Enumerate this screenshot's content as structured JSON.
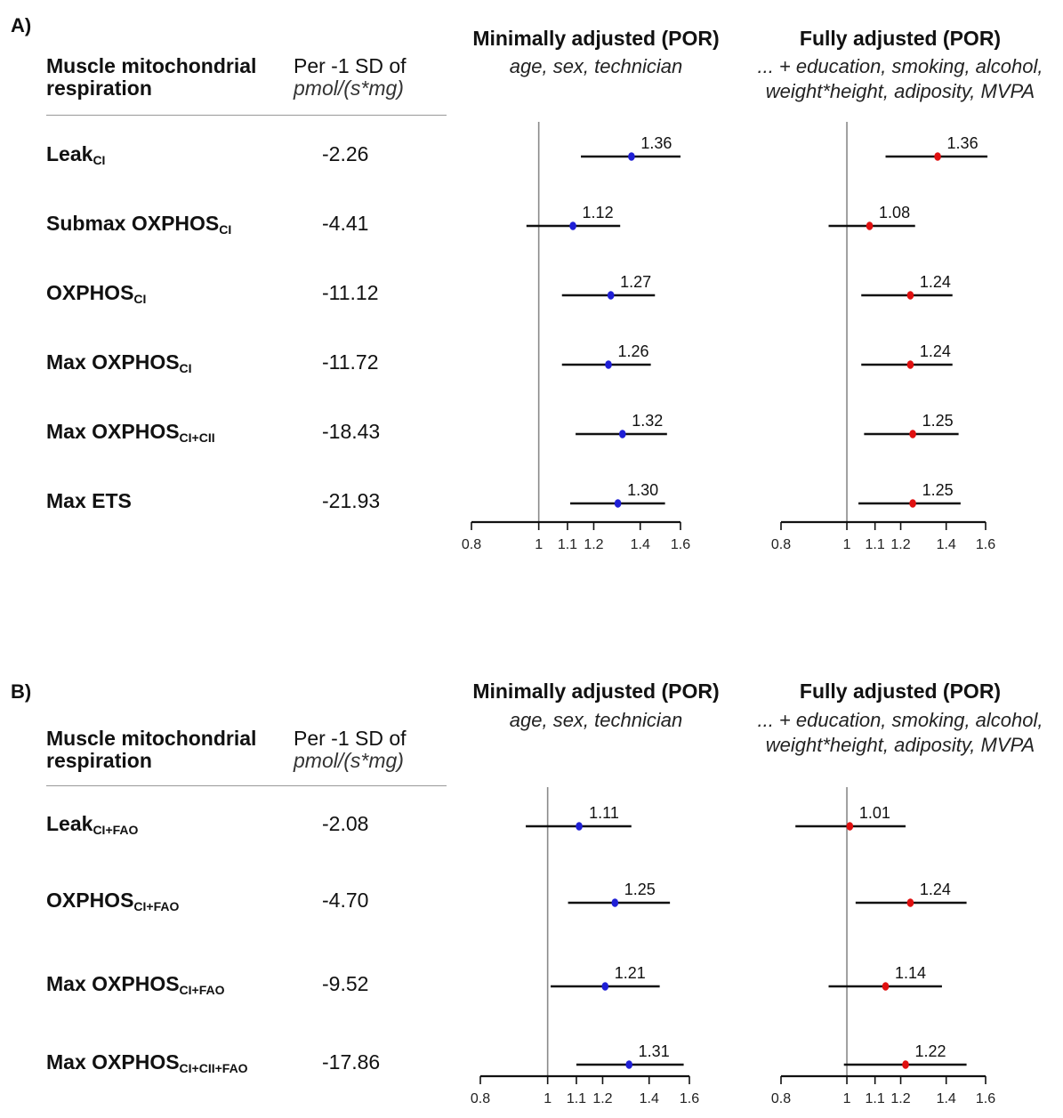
{
  "chart_data": [
    {
      "type": "forest",
      "panel_label": "A)",
      "column_header": {
        "line1": "Muscle mitochondrial",
        "line2": "respiration"
      },
      "per_header": {
        "line1": "Per -1 SD of",
        "line2": "pmol/(s*mg)"
      },
      "rows": [
        {
          "name": "Leak",
          "sub": "CI",
          "per_sd": "-2.26"
        },
        {
          "name": "Submax OXPHOS",
          "sub": "CI",
          "per_sd": "-4.41"
        },
        {
          "name": "OXPHOS",
          "sub": "CI",
          "per_sd": "-11.12"
        },
        {
          "name": "Max OXPHOS",
          "sub": "CI",
          "per_sd": "-11.72"
        },
        {
          "name": "Max OXPHOS",
          "sub": "CI+CII",
          "per_sd": "-18.43"
        },
        {
          "name": "Max ETS",
          "sub": "",
          "per_sd": "-21.93"
        }
      ],
      "subplots": [
        {
          "title": "Minimally adjusted (POR)",
          "subtitle": [
            "age, sex, technician"
          ],
          "color": "#1f1fd6",
          "x_scale": "log",
          "xlim": [
            0.8,
            1.6
          ],
          "ticks": [
            "0.8",
            "1",
            "1.1",
            "1.2",
            "1.4",
            "1.6"
          ],
          "ref_line": 1,
          "estimates": [
            1.36,
            1.12,
            1.27,
            1.26,
            1.32,
            1.3
          ],
          "estimate_labels": [
            "1.36",
            "1.12",
            "1.27",
            "1.26",
            "1.32",
            "1.30"
          ],
          "lower": [
            1.15,
            0.96,
            1.08,
            1.08,
            1.13,
            1.11
          ],
          "upper": [
            1.6,
            1.31,
            1.47,
            1.45,
            1.53,
            1.52
          ]
        },
        {
          "title": "Fully adjusted (POR)",
          "subtitle": [
            "... + education, smoking, alcohol,",
            "weight*height, adiposity, MVPA"
          ],
          "color": "#e01010",
          "x_scale": "log",
          "xlim": [
            0.8,
            1.6
          ],
          "ticks": [
            "0.8",
            "1",
            "1.1",
            "1.2",
            "1.4",
            "1.6"
          ],
          "ref_line": 1,
          "estimates": [
            1.36,
            1.08,
            1.24,
            1.24,
            1.25,
            1.25
          ],
          "estimate_labels": [
            "1.36",
            "1.08",
            "1.24",
            "1.24",
            "1.25",
            "1.25"
          ],
          "lower": [
            1.14,
            0.94,
            1.05,
            1.05,
            1.06,
            1.04
          ],
          "upper": [
            1.61,
            1.26,
            1.43,
            1.43,
            1.46,
            1.47
          ]
        }
      ]
    },
    {
      "type": "forest",
      "panel_label": "B)",
      "column_header": {
        "line1": "Muscle mitochondrial",
        "line2": "respiration"
      },
      "per_header": {
        "line1": "Per -1 SD of",
        "line2": "pmol/(s*mg)"
      },
      "rows": [
        {
          "name": "Leak",
          "sub": "CI+FAO",
          "per_sd": "-2.08"
        },
        {
          "name": "OXPHOS",
          "sub": "CI+FAO",
          "per_sd": "-4.70"
        },
        {
          "name": "Max OXPHOS",
          "sub": "CI+FAO",
          "per_sd": "-9.52"
        },
        {
          "name": "Max OXPHOS",
          "sub": "CI+CII+FAO",
          "per_sd": "-17.86"
        }
      ],
      "subplots": [
        {
          "title": "Minimally adjusted (POR)",
          "subtitle": [
            "age, sex, technician"
          ],
          "color": "#1f1fd6",
          "x_scale": "log",
          "xlim": [
            0.8,
            1.6
          ],
          "ticks": [
            "0.8",
            "1",
            "1.1",
            "1.2",
            "1.4",
            "1.6"
          ],
          "ref_line": 1,
          "estimates": [
            1.11,
            1.25,
            1.21,
            1.31
          ],
          "estimate_labels": [
            "1.11",
            "1.25",
            "1.21",
            "1.31"
          ],
          "lower": [
            0.93,
            1.07,
            1.01,
            1.1
          ],
          "upper": [
            1.32,
            1.5,
            1.45,
            1.57
          ]
        },
        {
          "title": "Fully adjusted (POR)",
          "subtitle": [
            "... + education, smoking, alcohol,",
            "weight*height, adiposity, MVPA"
          ],
          "color": "#e01010",
          "x_scale": "log",
          "xlim": [
            0.8,
            1.6
          ],
          "ticks": [
            "0.8",
            "1",
            "1.1",
            "1.2",
            "1.4",
            "1.6"
          ],
          "ref_line": 1,
          "estimates": [
            1.01,
            1.24,
            1.14,
            1.22
          ],
          "estimate_labels": [
            "1.01",
            "1.24",
            "1.14",
            "1.22"
          ],
          "lower": [
            0.84,
            1.03,
            0.94,
            0.99
          ],
          "upper": [
            1.22,
            1.5,
            1.38,
            1.5
          ]
        }
      ]
    }
  ]
}
